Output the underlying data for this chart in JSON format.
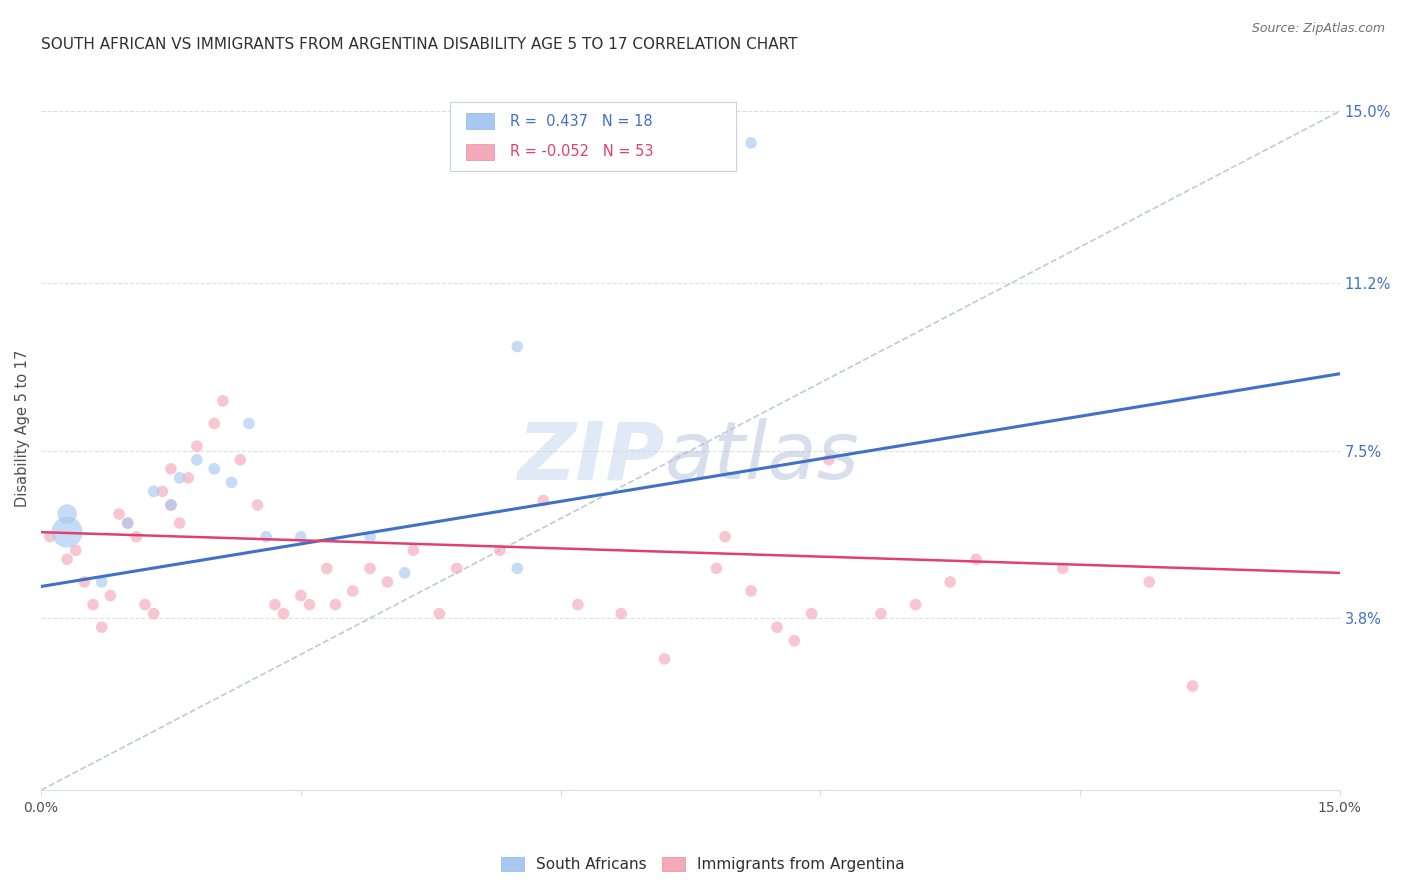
{
  "title": "SOUTH AFRICAN VS IMMIGRANTS FROM ARGENTINA DISABILITY AGE 5 TO 17 CORRELATION CHART",
  "source": "Source: ZipAtlas.com",
  "ylabel": "Disability Age 5 to 17",
  "xlim": [
    0.0,
    0.15
  ],
  "ylim": [
    0.0,
    0.16
  ],
  "ytick_positions": [
    0.038,
    0.075,
    0.112,
    0.15
  ],
  "ytick_labels": [
    "3.8%",
    "7.5%",
    "11.2%",
    "15.0%"
  ],
  "r_blue": "0.437",
  "n_blue": "18",
  "r_pink": "-0.052",
  "n_pink": "53",
  "blue_color": "#A8C8F0",
  "pink_color": "#F5A8B8",
  "blue_line_color": "#4070C8",
  "pink_line_color": "#E04070",
  "dashed_line_color": "#B8C4D4",
  "title_color": "#303030",
  "watermark_zip_color": "#C8D8F0",
  "watermark_atlas_color": "#A8B8D8",
  "background_color": "#FFFFFF",
  "grid_color": "#D8DCE4",
  "legend_blue_text": "#4070C8",
  "legend_pink_text": "#E04070",
  "blue_x": [
    0.003,
    0.003,
    0.007,
    0.01,
    0.013,
    0.015,
    0.016,
    0.018,
    0.02,
    0.022,
    0.024,
    0.026,
    0.03,
    0.038,
    0.042,
    0.055,
    0.055,
    0.082
  ],
  "blue_y": [
    0.057,
    0.061,
    0.046,
    0.059,
    0.066,
    0.063,
    0.069,
    0.073,
    0.071,
    0.068,
    0.081,
    0.056,
    0.056,
    0.056,
    0.048,
    0.049,
    0.098,
    0.143
  ],
  "blue_sizes": [
    500,
    200,
    70,
    70,
    70,
    70,
    70,
    70,
    70,
    70,
    70,
    70,
    70,
    70,
    70,
    70,
    70,
    70
  ],
  "pink_x": [
    0.001,
    0.003,
    0.004,
    0.005,
    0.006,
    0.007,
    0.008,
    0.009,
    0.01,
    0.011,
    0.012,
    0.013,
    0.014,
    0.015,
    0.015,
    0.016,
    0.017,
    0.018,
    0.02,
    0.021,
    0.023,
    0.025,
    0.027,
    0.028,
    0.03,
    0.031,
    0.033,
    0.034,
    0.036,
    0.038,
    0.04,
    0.043,
    0.046,
    0.048,
    0.053,
    0.058,
    0.062,
    0.067,
    0.072,
    0.078,
    0.079,
    0.082,
    0.085,
    0.087,
    0.089,
    0.091,
    0.097,
    0.101,
    0.105,
    0.108,
    0.118,
    0.128,
    0.133
  ],
  "pink_y": [
    0.056,
    0.051,
    0.053,
    0.046,
    0.041,
    0.036,
    0.043,
    0.061,
    0.059,
    0.056,
    0.041,
    0.039,
    0.066,
    0.071,
    0.063,
    0.059,
    0.069,
    0.076,
    0.081,
    0.086,
    0.073,
    0.063,
    0.041,
    0.039,
    0.043,
    0.041,
    0.049,
    0.041,
    0.044,
    0.049,
    0.046,
    0.053,
    0.039,
    0.049,
    0.053,
    0.064,
    0.041,
    0.039,
    0.029,
    0.049,
    0.056,
    0.044,
    0.036,
    0.033,
    0.039,
    0.073,
    0.039,
    0.041,
    0.046,
    0.051,
    0.049,
    0.046,
    0.023
  ],
  "pink_sizes": [
    70,
    70,
    70,
    70,
    70,
    70,
    70,
    70,
    70,
    70,
    70,
    70,
    70,
    70,
    70,
    70,
    70,
    70,
    70,
    70,
    70,
    70,
    70,
    70,
    70,
    70,
    70,
    70,
    70,
    70,
    70,
    70,
    70,
    70,
    70,
    70,
    70,
    70,
    70,
    70,
    70,
    70,
    70,
    70,
    70,
    70,
    70,
    70,
    70,
    70,
    70,
    70,
    70
  ],
  "blue_line_x0": 0.0,
  "blue_line_x1": 0.15,
  "blue_line_y0": 0.045,
  "blue_line_y1": 0.092,
  "pink_line_x0": 0.0,
  "pink_line_x1": 0.15,
  "pink_line_y0": 0.057,
  "pink_line_y1": 0.048
}
